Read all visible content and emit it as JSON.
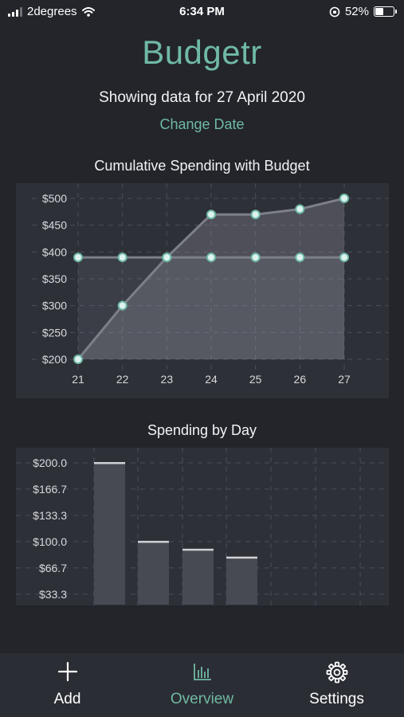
{
  "status_bar": {
    "carrier": "2degrees",
    "time": "6:34 PM",
    "battery_percent": "52%",
    "battery_level": 0.52,
    "icons": [
      "signal-icon",
      "wifi-icon",
      "orientation-lock-icon",
      "battery-icon"
    ]
  },
  "header": {
    "app_title": "Budgetr",
    "subtitle": "Showing data for 27 April 2020",
    "change_date_label": "Change Date"
  },
  "colors": {
    "accent": "#6fb9a7",
    "background": "#23252b",
    "chart_background": "#2e3038",
    "point_fill": "#dff3ee"
  },
  "chart_data": [
    {
      "type": "area",
      "title": "Cumulative Spending with Budget",
      "x": [
        "21",
        "22",
        "23",
        "24",
        "25",
        "26",
        "27"
      ],
      "yticks": [
        "$500",
        "$450",
        "$400",
        "$350",
        "$300",
        "$250",
        "$200"
      ],
      "ylim": [
        200,
        500
      ],
      "grid": true,
      "series": [
        {
          "values": [
            200,
            300,
            390,
            470,
            470,
            480,
            500
          ]
        },
        {
          "values": [
            390,
            390,
            390,
            390,
            390,
            390,
            390
          ]
        }
      ]
    },
    {
      "type": "bar",
      "title": "Spending by Day",
      "yticks": [
        "$200.0",
        "$166.7",
        "$133.3",
        "$100.0",
        "$66.7",
        "$33.3"
      ],
      "ylim": [
        20,
        200
      ],
      "grid": true,
      "values": [
        200,
        100,
        90,
        80
      ]
    }
  ],
  "tab_bar": {
    "tabs": [
      {
        "label": "Add",
        "icon": "plus-icon",
        "active": false
      },
      {
        "label": "Overview",
        "icon": "bar-chart-icon",
        "active": true
      },
      {
        "label": "Settings",
        "icon": "gear-icon",
        "active": false
      }
    ]
  }
}
